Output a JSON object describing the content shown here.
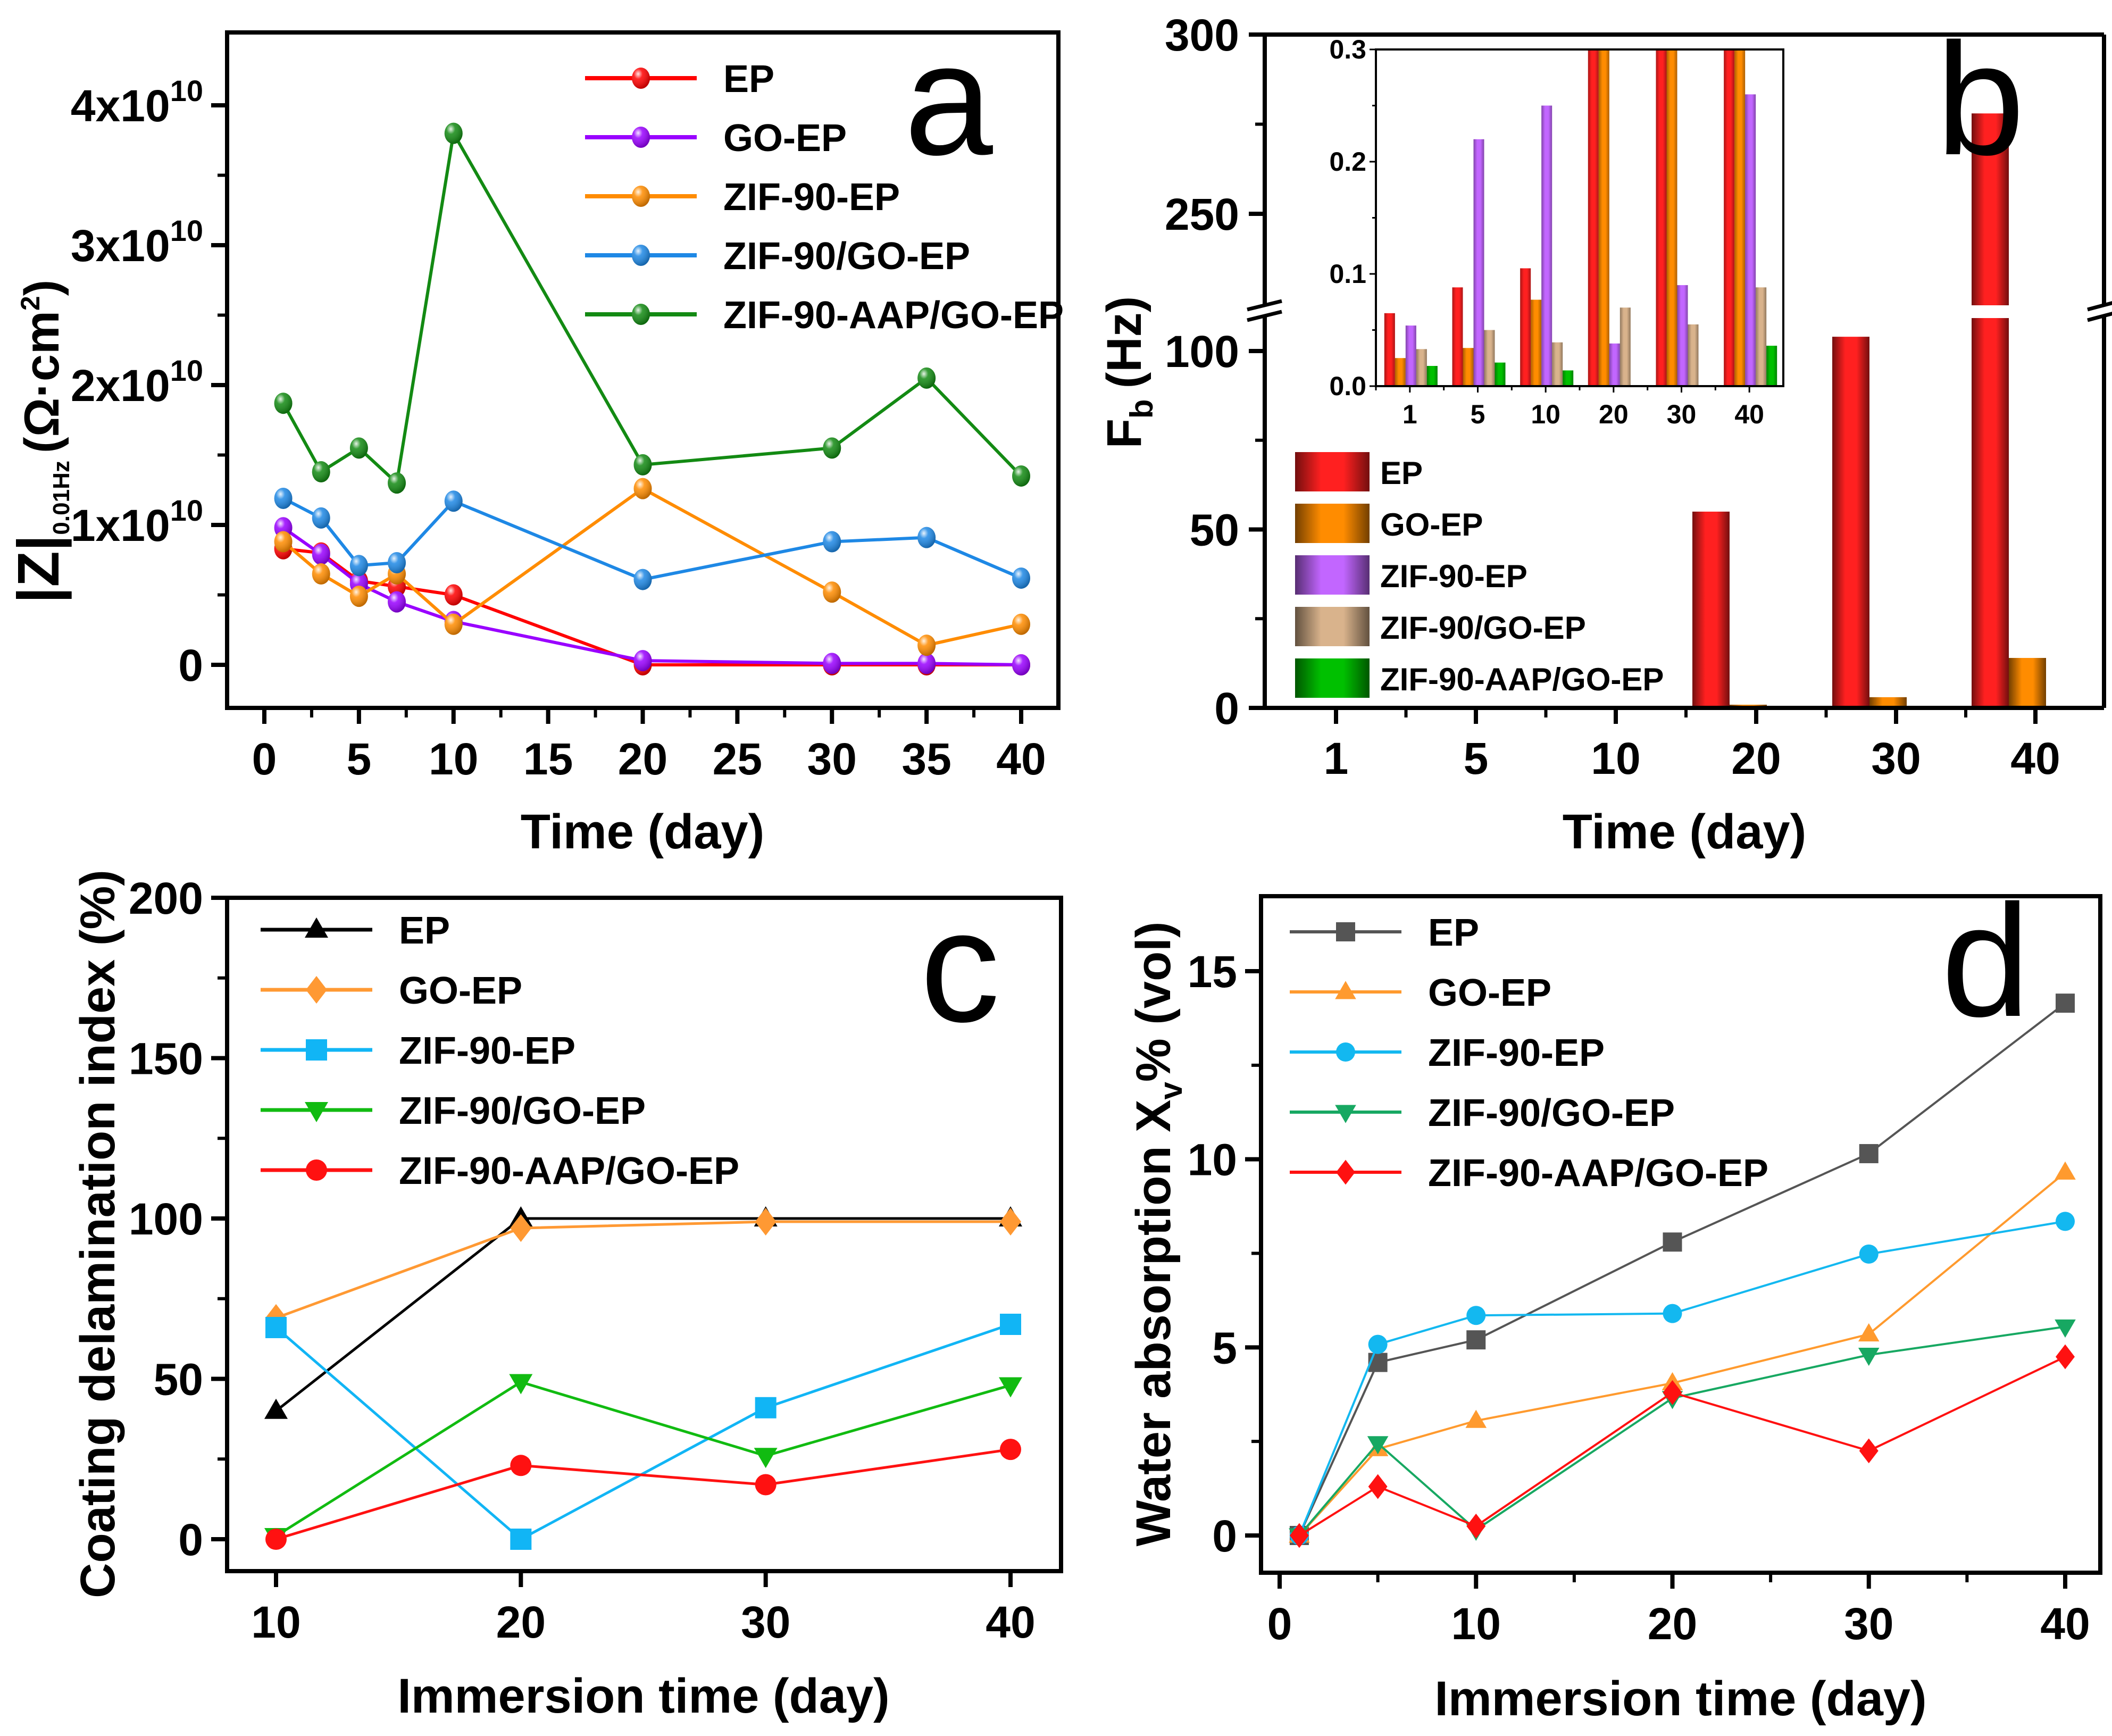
{
  "figure": {
    "panels": [
      "a",
      "b",
      "c",
      "d"
    ]
  },
  "chart_data": [
    {
      "id": "a",
      "panel_label": "a",
      "type": "line",
      "title": "",
      "xlabel": "Time (day)",
      "ylabel_main": "|Z|",
      "ylabel_sub": "0.01Hz",
      "ylabel_unit": "(Ω·cm",
      "ylabel_unit_sup": "2",
      "ylabel_unit_close": ")",
      "xlim": [
        -1,
        41.5
      ],
      "ylim": [
        -3000000000.0,
        43000000000.0
      ],
      "xticks": [
        0,
        5,
        10,
        15,
        20,
        25,
        30,
        35,
        40
      ],
      "xtick_labels": [
        "0",
        "5",
        "10",
        "15",
        "20",
        "25",
        "30",
        "35",
        "40"
      ],
      "yticks": [
        0,
        10000000000.0,
        20000000000.0,
        30000000000.0,
        40000000000.0
      ],
      "ytick_labels": [
        {
          "base": "0",
          "exp": ""
        },
        {
          "base": "1x10",
          "exp": "10"
        },
        {
          "base": "2x10",
          "exp": "10"
        },
        {
          "base": "3x10",
          "exp": "10"
        },
        {
          "base": "4x10",
          "exp": "10"
        }
      ],
      "grid": false,
      "legend_position": "top-right",
      "x": [
        1,
        3,
        5,
        7,
        10,
        20,
        30,
        35,
        40
      ],
      "series": [
        {
          "name": "EP",
          "color": "#ff0000",
          "marker": "sphere",
          "values": [
            8300000000.0,
            8000000000.0,
            6000000000.0,
            5600000000.0,
            5000000000.0,
            0.0,
            0.0,
            0.0,
            0.0
          ]
        },
        {
          "name": "GO-EP",
          "color": "#9900ff",
          "marker": "sphere",
          "values": [
            9800000000.0,
            7900000000.0,
            5800000000.0,
            4500000000.0,
            3100000000.0,
            300000000.0,
            100000000.0,
            100000000.0,
            0.0
          ]
        },
        {
          "name": "ZIF-90-EP",
          "color": "#ff8c00",
          "marker": "sphere",
          "values": [
            8800000000.0,
            6500000000.0,
            4900000000.0,
            6500000000.0,
            2900000000.0,
            12600000000.0,
            5200000000.0,
            1400000000.0,
            2900000000.0
          ]
        },
        {
          "name": "ZIF-90/GO-EP",
          "color": "#1e88e5",
          "marker": "sphere",
          "values": [
            11900000000.0,
            10500000000.0,
            7100000000.0,
            7300000000.0,
            11700000000.0,
            6100000000.0,
            8800000000.0,
            9100000000.0,
            6200000000.0
          ]
        },
        {
          "name": "ZIF-90-AAP/GO-EP",
          "color": "#138a13",
          "marker": "sphere",
          "values": [
            18700000000.0,
            13800000000.0,
            15500000000.0,
            13000000000.0,
            38000000000.0,
            14300000000.0,
            15500000000.0,
            20500000000.0,
            13500000000.0
          ]
        }
      ]
    },
    {
      "id": "b",
      "panel_label": "b",
      "type": "bar",
      "title": "",
      "xlabel": "Time (day)",
      "ylabel_main": "F",
      "ylabel_sub": "b",
      "ylabel_unit": "(Hz)",
      "categories": [
        "1",
        "5",
        "10",
        "20",
        "30",
        "40"
      ],
      "y_axis_break": {
        "lower": [
          0,
          115
        ],
        "upper": [
          225,
          300
        ]
      },
      "yticks": [
        0,
        50,
        100,
        250,
        300
      ],
      "ytick_labels": [
        "0",
        "50",
        "100",
        "250",
        "300"
      ],
      "minor_yticks": [
        25,
        75,
        275
      ],
      "grid": false,
      "legend_position": "bottom-left",
      "series": [
        {
          "name": "EP",
          "color": "#ff2020",
          "values": [
            0.065,
            0.088,
            0.105,
            55,
            104,
            278
          ]
        },
        {
          "name": "GO-EP",
          "color": "#ff8c00",
          "values": [
            0.025,
            0.034,
            0.077,
            0.9,
            3.0,
            14
          ]
        },
        {
          "name": "ZIF-90-EP",
          "color": "#c266ff",
          "values": [
            0.054,
            0.22,
            0.25,
            0.038,
            0.09,
            0.26
          ]
        },
        {
          "name": "ZIF-90/GO-EP",
          "color": "#d9b38c",
          "values": [
            0.033,
            0.05,
            0.039,
            0.07,
            0.055,
            0.088
          ]
        },
        {
          "name": "ZIF-90-AAP/GO-EP",
          "color": "#00c000",
          "values": [
            0.018,
            0.021,
            0.014,
            0.0,
            0.0,
            0.036
          ]
        }
      ],
      "inset": {
        "type": "bar",
        "categories": [
          "1",
          "5",
          "10",
          "20",
          "30",
          "40"
        ],
        "ylim": [
          0,
          0.3
        ],
        "yticks": [
          0.0,
          0.1,
          0.2,
          0.3
        ],
        "ytick_labels": [
          "0.0",
          "0.1",
          "0.2",
          "0.3"
        ],
        "note": "zoomed view of same data, clipped at 0.3"
      }
    },
    {
      "id": "c",
      "panel_label": "c",
      "type": "line",
      "title": "",
      "xlabel": "Immersion time (day)",
      "ylabel": "Coating delamination index (%)",
      "xlim": [
        7.5,
        43
      ],
      "ylim": [
        -10,
        200
      ],
      "xticks": [
        10,
        20,
        30,
        40
      ],
      "xtick_labels": [
        "10",
        "20",
        "30",
        "40"
      ],
      "yticks": [
        0,
        50,
        100,
        150,
        200
      ],
      "ytick_labels": [
        "0",
        "50",
        "100",
        "150",
        "200"
      ],
      "grid": false,
      "legend_position": "top-left",
      "x": [
        10,
        20,
        30,
        40
      ],
      "series": [
        {
          "name": "EP",
          "color": "#000000",
          "marker": "triangle-up",
          "values": [
            40,
            100,
            100,
            100
          ]
        },
        {
          "name": "GO-EP",
          "color": "#ff9933",
          "marker": "diamond",
          "values": [
            69,
            97,
            99,
            99
          ]
        },
        {
          "name": "ZIF-90-EP",
          "color": "#11b5f5",
          "marker": "square",
          "values": [
            66,
            0,
            41,
            67
          ]
        },
        {
          "name": "ZIF-90/GO-EP",
          "color": "#11bb11",
          "marker": "triangle-down",
          "values": [
            1,
            49,
            26,
            48
          ]
        },
        {
          "name": "ZIF-90-AAP/GO-EP",
          "color": "#ff1111",
          "marker": "circle",
          "values": [
            0,
            23,
            17,
            28
          ]
        }
      ]
    },
    {
      "id": "d",
      "panel_label": "d",
      "type": "line",
      "title": "",
      "xlabel": "Immersion time (day)",
      "ylabel_main": "Water absorption X",
      "ylabel_sub": "v",
      "ylabel_unit": "% (vol)",
      "xlim": [
        -1,
        42
      ],
      "ylim": [
        -0.9,
        17
      ],
      "xticks": [
        0,
        10,
        20,
        30,
        40
      ],
      "xtick_labels": [
        "0",
        "10",
        "20",
        "30",
        "40"
      ],
      "minor_xticks": [
        5,
        15,
        25,
        35
      ],
      "yticks": [
        0,
        5,
        10,
        15
      ],
      "ytick_labels": [
        "0",
        "5",
        "10",
        "15"
      ],
      "minor_yticks": [
        2.5,
        7.5,
        12.5
      ],
      "grid": false,
      "legend_position": "top-left",
      "x": [
        1,
        5,
        10,
        20,
        30,
        40
      ],
      "series": [
        {
          "name": "EP",
          "color": "#555555",
          "marker": "square",
          "values": [
            0,
            4.6,
            5.2,
            7.8,
            10.15,
            14.15
          ]
        },
        {
          "name": "GO-EP",
          "color": "#ff9a2e",
          "marker": "triangle-up",
          "values": [
            0,
            2.3,
            3.05,
            4.05,
            5.35,
            9.65
          ]
        },
        {
          "name": "ZIF-90-EP",
          "color": "#13b8f0",
          "marker": "circle",
          "values": [
            0,
            5.08,
            5.85,
            5.9,
            7.48,
            8.35
          ]
        },
        {
          "name": "ZIF-90/GO-EP",
          "color": "#17a862",
          "marker": "triangle-down",
          "values": [
            0,
            2.45,
            0.15,
            3.65,
            4.8,
            5.55
          ]
        },
        {
          "name": "ZIF-90-AAP/GO-EP",
          "color": "#ff1111",
          "marker": "diamond",
          "values": [
            0,
            1.3,
            0.25,
            3.8,
            2.25,
            4.75
          ]
        }
      ]
    }
  ]
}
